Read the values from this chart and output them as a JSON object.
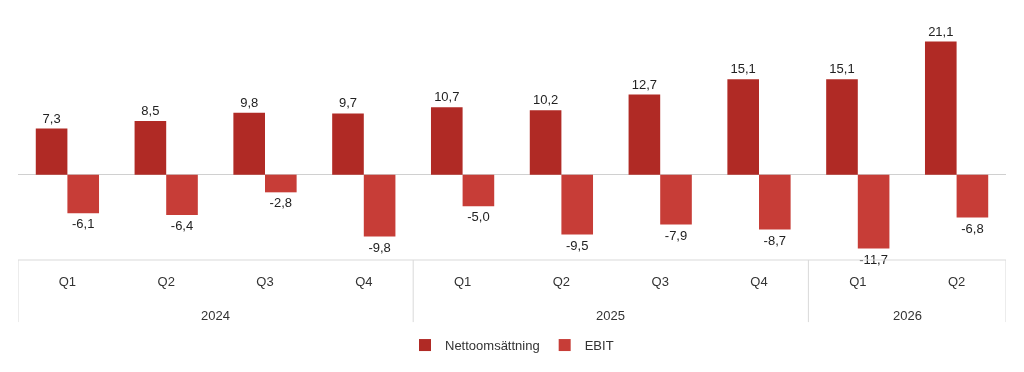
{
  "chart_data": {
    "type": "bar",
    "categories": [
      "Q1",
      "Q2",
      "Q3",
      "Q4",
      "Q1",
      "Q2",
      "Q3",
      "Q4",
      "Q1",
      "Q2"
    ],
    "series": [
      {
        "name": "Nettoomsättning",
        "color": "#b02a25",
        "values": [
          7.3,
          8.5,
          9.8,
          9.7,
          10.7,
          10.2,
          12.7,
          15.1,
          15.1,
          21.1
        ],
        "value_labels": [
          "7,3",
          "8,5",
          "9,8",
          "9,7",
          "10,7",
          "10,2",
          "12,7",
          "15,1",
          "15,1",
          "21,1"
        ]
      },
      {
        "name": "EBIT",
        "color": "#c73d37",
        "values": [
          -6.1,
          -6.4,
          -2.8,
          -9.8,
          -5.0,
          -9.5,
          -7.9,
          -8.7,
          -11.7,
          -6.8
        ],
        "value_labels": [
          "-6,1",
          "-6,4",
          "-2,8",
          "-9,8",
          "-5,0",
          "-9,5",
          "-7,9",
          "-8,7",
          "-11,7",
          "-6,8"
        ]
      }
    ],
    "annotations": [
      "2024",
      "2025",
      "2026"
    ],
    "grid": false,
    "legend": "bottom"
  }
}
